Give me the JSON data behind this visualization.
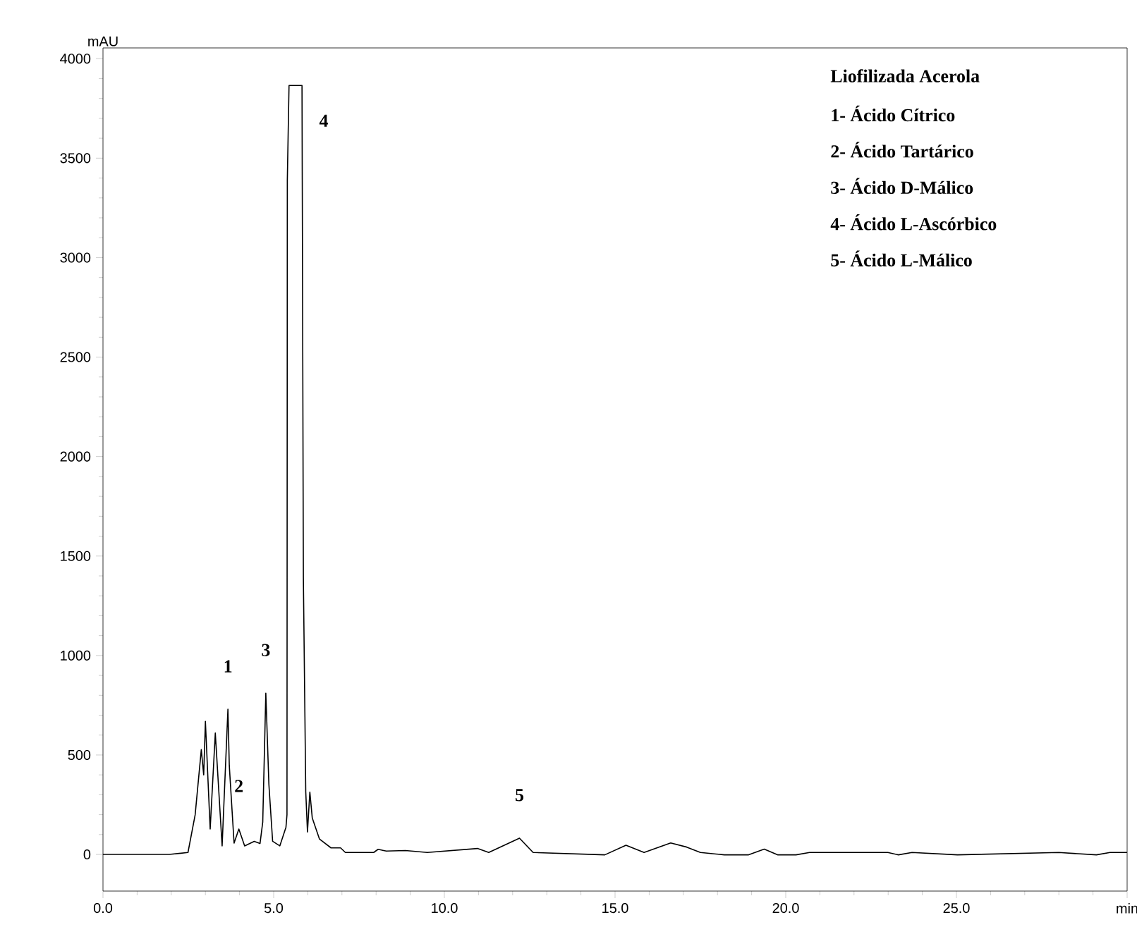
{
  "chart_data": {
    "type": "line",
    "title": "Liofilizada Acerola",
    "ylabel": "mAU",
    "x": [
      0,
      1.94,
      2.49,
      2.7,
      2.88,
      2.95,
      3.0,
      3.14,
      3.29,
      3.49,
      3.66,
      3.7,
      3.84,
      3.98,
      4.15,
      4.43,
      4.6,
      4.68,
      4.77,
      4.86,
      4.97,
      5.18,
      5.36,
      5.39,
      5.4,
      5.45,
      5.83,
      5.87,
      5.94,
      5.99,
      6.06,
      6.13,
      6.34,
      6.68,
      6.96,
      7.1,
      7.93,
      8.06,
      8.22,
      8.3,
      8.86,
      9.5,
      10.97,
      11.3,
      12.2,
      12.6,
      14.7,
      15.32,
      15.85,
      16.63,
      17.1,
      17.5,
      18.2,
      18.9,
      19.37,
      19.77,
      20.3,
      20.7,
      22.99,
      23.3,
      23.7,
      25.03,
      28,
      29.1,
      29.5,
      30
    ],
    "series": [
      {
        "color": "#000000",
        "values": [
          0,
          0,
          10,
          199,
          527,
          400,
          669,
          128,
          610,
          43,
          730,
          447,
          57,
          128,
          43,
          66,
          55,
          163,
          811,
          352,
          66,
          43,
          137,
          200,
          3390,
          3865,
          3865,
          1390,
          314,
          113,
          314,
          184,
          78,
          33,
          33,
          10,
          10,
          26,
          20,
          17,
          20,
          10,
          30,
          10,
          82,
          10,
          -2,
          46,
          10,
          58,
          37,
          10,
          -2,
          -2,
          27,
          -2,
          -2,
          10,
          10,
          -2,
          10,
          -2,
          10,
          -2,
          10,
          10
        ]
      }
    ],
    "xlim": [
      0,
      30
    ],
    "ylim": [
      -184,
      4054
    ],
    "xticks": [
      {
        "value": 0,
        "label": "0.0"
      },
      {
        "value": 5,
        "label": "5.0"
      },
      {
        "value": 10,
        "label": "10.0"
      },
      {
        "value": 15,
        "label": "15.0"
      },
      {
        "value": 20,
        "label": "20.0"
      },
      {
        "value": 25,
        "label": "25.0"
      },
      {
        "value": 30,
        "label": "min"
      }
    ],
    "yticks": [
      0,
      500,
      1000,
      1500,
      2000,
      2500,
      3000,
      3500,
      4000
    ],
    "grid": false,
    "marker": "none",
    "line_style": "solid",
    "annotations": [
      {
        "text": "1",
        "x": 3.66,
        "y": 730
      },
      {
        "text": "2",
        "x": 3.98,
        "y": 128
      },
      {
        "text": "3",
        "x": 4.77,
        "y": 811
      },
      {
        "text": "4",
        "x": 5.87,
        "y": 3865
      },
      {
        "text": "5",
        "x": 12.2,
        "y": 82
      },
      "1- Ácido Cítrico",
      "2- Ácido Tartárico",
      "3- Ácido D-Málico",
      "4- Ácido L-Ascórbico",
      "5- Ácido L-Málico"
    ]
  }
}
